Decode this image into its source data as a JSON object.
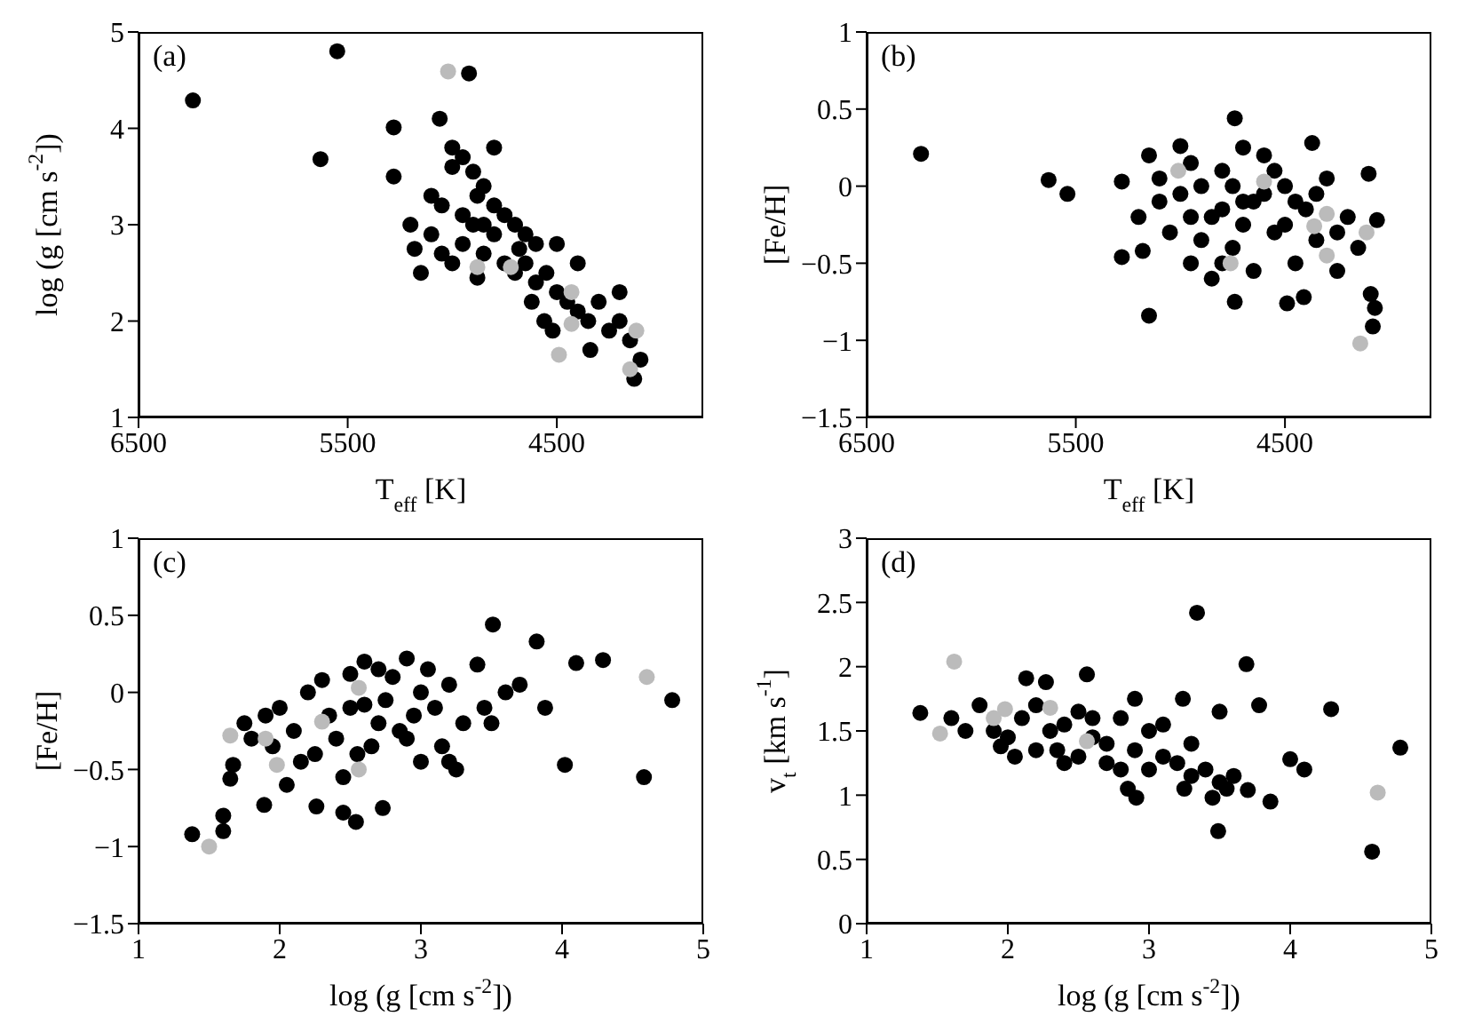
{
  "chart_data": [
    {
      "type": "scatter",
      "xlabel": "T$_{eff}$ [K]",
      "ylabel": "log (g [cm s$^{-2}$])",
      "annotations": [
        "(a)"
      ],
      "xlim": [
        6500,
        3800
      ],
      "xticks": [
        6500,
        5500,
        4500
      ],
      "ylim": [
        1,
        5
      ],
      "yticks": [
        1,
        2,
        3,
        4,
        5
      ],
      "marker": "circle",
      "grid": false,
      "legend": false,
      "series": [
        {
          "color": "#000000",
          "x": [
            6240,
            5630,
            5550,
            4920,
            5280,
            5280,
            5060,
            5100,
            5050,
            5000,
            4950,
            4900,
            4850,
            4800,
            4750,
            4700,
            4650,
            4600,
            5100,
            5050,
            5000,
            4950,
            4900,
            4850,
            4800,
            4750,
            4700,
            4650,
            4600,
            4550,
            4500,
            4450,
            4400,
            4350,
            4300,
            4250,
            4200,
            4150,
            4100,
            4130,
            4200,
            4500,
            5150,
            5180,
            4880,
            4680,
            4560,
            4520,
            4340,
            4800,
            4850,
            4950,
            4620,
            4400,
            5200,
            5000,
            4880
          ],
          "values": [
            4.29,
            3.68,
            4.8,
            4.57,
            4.01,
            3.5,
            4.1,
            3.3,
            3.2,
            3.6,
            3.7,
            3.55,
            3.4,
            3.2,
            3.1,
            3.0,
            2.9,
            2.8,
            2.9,
            2.7,
            2.6,
            2.8,
            3.0,
            2.7,
            2.9,
            2.6,
            2.5,
            2.6,
            2.4,
            2.5,
            2.3,
            2.2,
            2.1,
            2.0,
            2.2,
            1.9,
            2.0,
            1.8,
            1.6,
            1.4,
            2.3,
            2.8,
            2.5,
            2.75,
            2.45,
            2.75,
            2.0,
            1.9,
            1.7,
            3.8,
            3.0,
            3.1,
            2.2,
            2.6,
            3.0,
            3.8,
            3.3
          ]
        },
        {
          "color": "#bbbbbb",
          "x": [
            5020,
            4880,
            4720,
            4430,
            4430,
            4490,
            4120,
            4150
          ],
          "values": [
            4.59,
            2.56,
            2.56,
            2.3,
            1.97,
            1.65,
            1.9,
            1.5
          ]
        }
      ]
    },
    {
      "type": "scatter",
      "xlabel": "T$_{eff}$ [K]",
      "ylabel": "[Fe/H]",
      "annotations": [
        "(b)"
      ],
      "xlim": [
        6500,
        3800
      ],
      "xticks": [
        6500,
        5500,
        4500
      ],
      "ylim": [
        -1.5,
        1
      ],
      "yticks": [
        -1.5,
        -1,
        -0.5,
        0,
        0.5,
        1
      ],
      "marker": "circle",
      "grid": false,
      "legend": false,
      "series": [
        {
          "color": "#000000",
          "x": [
            6240,
            5630,
            5540,
            5280,
            5280,
            5150,
            4740,
            4740,
            4490,
            4410,
            4370,
            4090,
            4070,
            4080,
            4060,
            5150,
            5100,
            5050,
            5000,
            4950,
            4900,
            4850,
            4800,
            4750,
            4700,
            4650,
            4600,
            4550,
            4500,
            4450,
            4400,
            4350,
            4300,
            4250,
            4200,
            4150,
            4100,
            5000,
            4900,
            4850,
            4800,
            4750,
            4700,
            4650,
            4600,
            4550,
            4500,
            5100,
            5200,
            5180,
            4950,
            4450,
            4350,
            4250,
            4800,
            4950,
            4700
          ],
          "values": [
            0.21,
            0.04,
            -0.05,
            0.03,
            -0.46,
            -0.84,
            0.44,
            -0.75,
            -0.76,
            -0.72,
            0.28,
            -0.7,
            -0.79,
            -0.91,
            -0.22,
            0.2,
            -0.1,
            -0.3,
            0.26,
            -0.5,
            0.0,
            -0.2,
            0.1,
            -0.4,
            0.25,
            -0.1,
            0.2,
            -0.3,
            0.0,
            -0.5,
            -0.15,
            -0.35,
            0.05,
            -0.55,
            -0.2,
            -0.4,
            0.08,
            -0.05,
            -0.35,
            -0.6,
            -0.15,
            0.0,
            -0.25,
            -0.55,
            -0.05,
            0.1,
            -0.25,
            0.05,
            -0.2,
            -0.42,
            -0.2,
            -0.1,
            -0.05,
            -0.3,
            -0.5,
            0.15,
            -0.1
          ]
        },
        {
          "color": "#bbbbbb",
          "x": [
            5010,
            4600,
            4760,
            4360,
            4300,
            4300,
            4110,
            4140
          ],
          "values": [
            0.1,
            0.03,
            -0.5,
            -0.26,
            -0.18,
            -0.45,
            -0.3,
            -1.02
          ]
        }
      ]
    },
    {
      "type": "scatter",
      "xlabel": "log (g [cm s$^{-2}$])",
      "ylabel": "[Fe/H]",
      "annotations": [
        "(c)"
      ],
      "xlim": [
        1,
        5
      ],
      "xticks": [
        1,
        2,
        3,
        4,
        5
      ],
      "ylim": [
        -1.5,
        1
      ],
      "yticks": [
        -1.5,
        -1,
        -0.5,
        0,
        0.5,
        1
      ],
      "marker": "circle",
      "grid": false,
      "legend": false,
      "series": [
        {
          "color": "#000000",
          "x": [
            1.38,
            1.6,
            1.6,
            1.65,
            1.67,
            1.89,
            2.26,
            2.45,
            2.54,
            2.73,
            3.51,
            3.82,
            3.88,
            4.02,
            4.1,
            4.29,
            4.58,
            4.78,
            2.0,
            2.1,
            2.2,
            2.3,
            2.4,
            2.5,
            2.6,
            2.7,
            2.8,
            2.9,
            3.0,
            3.1,
            3.2,
            3.3,
            2.45,
            2.55,
            2.65,
            2.75,
            2.85,
            2.95,
            3.05,
            2.35,
            2.25,
            2.15,
            1.9,
            1.8,
            1.75,
            2.6,
            2.9,
            3.0,
            3.2,
            3.25,
            3.45,
            3.5,
            3.6,
            3.7,
            3.4,
            2.5,
            2.7,
            3.15,
            2.05,
            1.95
          ],
          "values": [
            -0.92,
            -0.8,
            -0.9,
            -0.56,
            -0.47,
            -0.73,
            -0.74,
            -0.78,
            -0.84,
            -0.75,
            0.44,
            0.33,
            -0.1,
            -0.47,
            0.19,
            0.21,
            -0.55,
            -0.05,
            -0.1,
            -0.25,
            0.0,
            0.08,
            -0.3,
            -0.1,
            -0.08,
            -0.2,
            0.1,
            0.22,
            0.0,
            -0.1,
            0.05,
            -0.2,
            -0.55,
            -0.4,
            -0.35,
            -0.05,
            -0.25,
            -0.15,
            0.15,
            -0.15,
            -0.4,
            -0.45,
            -0.15,
            -0.3,
            -0.2,
            0.2,
            -0.3,
            -0.45,
            -0.45,
            -0.5,
            -0.1,
            -0.2,
            0.0,
            0.05,
            0.18,
            0.12,
            0.15,
            -0.35,
            -0.6,
            -0.35
          ]
        },
        {
          "color": "#bbbbbb",
          "x": [
            1.5,
            1.65,
            1.9,
            1.98,
            2.3,
            2.56,
            2.56,
            4.6
          ],
          "values": [
            -1.0,
            -0.28,
            -0.3,
            -0.47,
            -0.19,
            0.03,
            -0.5,
            0.1
          ]
        }
      ]
    },
    {
      "type": "scatter",
      "xlabel": "log (g [cm s$^{-2}$])",
      "ylabel": "v$_{t}$ [km s$^{-1}$]",
      "annotations": [
        "(d)"
      ],
      "xlim": [
        1,
        5
      ],
      "xticks": [
        1,
        2,
        3,
        4,
        5
      ],
      "ylim": [
        0,
        3
      ],
      "yticks": [
        0,
        0.5,
        1,
        1.5,
        2,
        2.5,
        3
      ],
      "marker": "circle",
      "grid": false,
      "legend": false,
      "series": [
        {
          "color": "#000000",
          "x": [
            1.38,
            3.34,
            3.69,
            3.78,
            3.49,
            4.29,
            4.78,
            4.58,
            4.0,
            4.1,
            3.86,
            2.91,
            2.13,
            2.27,
            2.56,
            3.24,
            3.5,
            3.7,
            1.6,
            1.7,
            1.8,
            1.9,
            2.0,
            2.1,
            2.2,
            2.3,
            2.4,
            2.5,
            2.6,
            2.7,
            2.8,
            2.9,
            3.0,
            3.1,
            3.2,
            3.3,
            3.4,
            3.5,
            3.6,
            2.2,
            2.4,
            2.6,
            2.8,
            2.9,
            3.0,
            3.1,
            2.5,
            2.7,
            2.35,
            1.95,
            2.05,
            3.25,
            3.45,
            3.55,
            2.85,
            3.3
          ],
          "values": [
            1.64,
            2.42,
            2.02,
            1.7,
            0.72,
            1.67,
            1.37,
            0.56,
            1.28,
            1.2,
            0.95,
            0.98,
            1.91,
            1.88,
            1.94,
            1.75,
            1.65,
            1.04,
            1.6,
            1.5,
            1.7,
            1.5,
            1.45,
            1.6,
            1.35,
            1.5,
            1.55,
            1.3,
            1.45,
            1.4,
            1.6,
            1.35,
            1.5,
            1.3,
            1.25,
            1.15,
            1.2,
            1.1,
            1.15,
            1.7,
            1.25,
            1.6,
            1.2,
            1.75,
            1.2,
            1.55,
            1.65,
            1.25,
            1.35,
            1.38,
            1.3,
            1.05,
            0.98,
            1.05,
            1.05,
            1.4
          ]
        },
        {
          "color": "#bbbbbb",
          "x": [
            1.62,
            1.52,
            1.98,
            1.9,
            2.3,
            2.56,
            4.62
          ],
          "values": [
            2.04,
            1.48,
            1.67,
            1.6,
            1.68,
            1.42,
            1.02
          ]
        }
      ]
    }
  ]
}
